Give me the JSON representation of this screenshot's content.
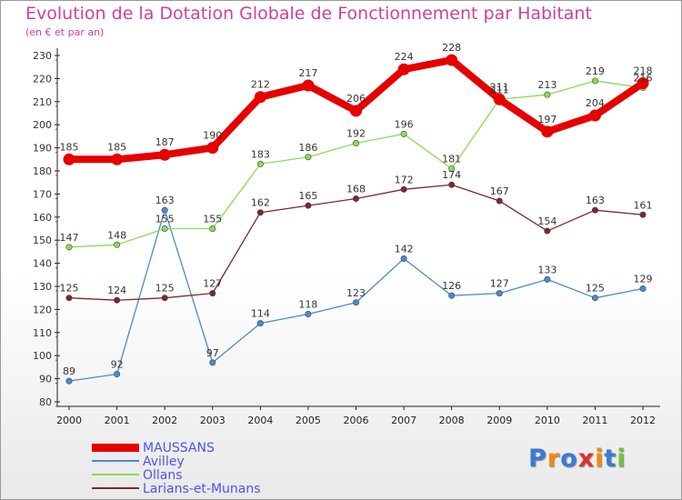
{
  "chart_data": {
    "type": "line",
    "title": "Evolution de la Dotation Globale de Fonctionnement par Habitant",
    "subtitle": "(en € et par an)",
    "xlabel": "",
    "ylabel": "",
    "x": [
      "2000",
      "2001",
      "2002",
      "2003",
      "2004",
      "2005",
      "2006",
      "2007",
      "2008",
      "2009",
      "2010",
      "2011",
      "2012"
    ],
    "ylim": [
      80,
      230
    ],
    "yticks": [
      80,
      90,
      100,
      110,
      120,
      130,
      140,
      150,
      160,
      170,
      180,
      190,
      200,
      210,
      220,
      230
    ],
    "grid": false,
    "legend_position": "bottom-left",
    "series": [
      {
        "name": "MAUSSANS",
        "color": "#e60000",
        "values": [
          185,
          185,
          187,
          190,
          212,
          217,
          206,
          224,
          228,
          211,
          197,
          204,
          218
        ]
      },
      {
        "name": "Avilley",
        "color": "#4a8ccc",
        "values": [
          89,
          92,
          163,
          97,
          114,
          118,
          123,
          142,
          126,
          127,
          133,
          125,
          129
        ]
      },
      {
        "name": "Ollans",
        "color": "#88dd55",
        "values": [
          147,
          148,
          155,
          155,
          183,
          186,
          192,
          196,
          181,
          211,
          213,
          219,
          216
        ]
      },
      {
        "name": "Larians-et-Munans",
        "color": "#7a2a2a",
        "values": [
          125,
          124,
          125,
          127,
          162,
          165,
          168,
          172,
          174,
          167,
          154,
          163,
          161
        ]
      }
    ]
  },
  "logo": {
    "text": "Proxiti",
    "colors": [
      "#3a7bd5",
      "#f28c00",
      "#3a7bd5",
      "#e03030",
      "#f28c00",
      "#3a7bd5",
      "#78c23a"
    ]
  }
}
